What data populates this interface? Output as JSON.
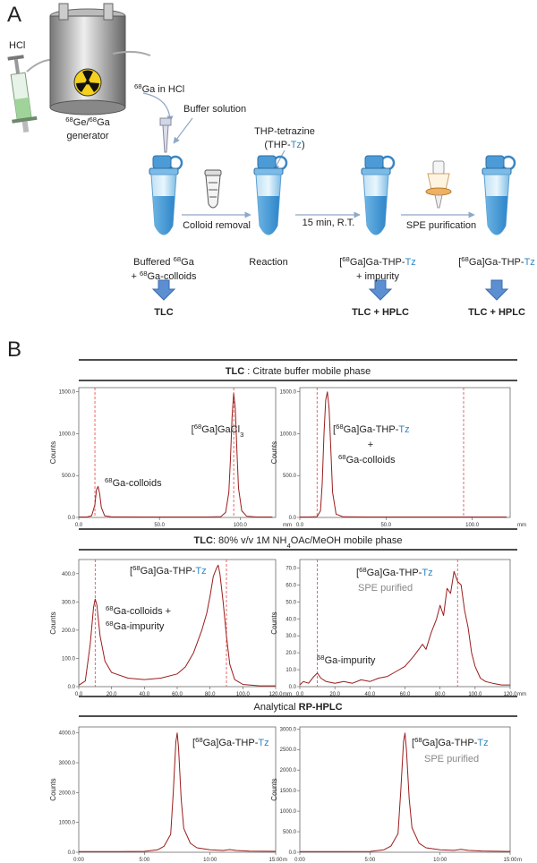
{
  "panel_a": {
    "label": "A",
    "hcl": "HCl",
    "generator": [
      "68",
      "Ge/",
      "68",
      "Ga"
    ],
    "generator_word": "generator",
    "ga_in_hcl": [
      "68",
      "Ga in HCl"
    ],
    "buffer": "Buffer solution",
    "thp_tetrazine": "THP-tetrazine",
    "thp_tz": [
      "(THP-",
      "Tz",
      ")"
    ],
    "colloid_removal": "Colloid removal",
    "time": "15 min, R.T.",
    "spe": "SPE purification",
    "step1": [
      "Buffered ",
      "68",
      "Ga"
    ],
    "step1b": [
      "+ ",
      "68",
      "Ga-colloids"
    ],
    "step2": "Reaction",
    "step3": [
      "[",
      "68",
      "Ga]Ga-THP-",
      "Tz"
    ],
    "step3b": "+ impurity",
    "step4": [
      "[",
      "68",
      "Ga]Ga-THP-",
      "Tz"
    ],
    "analysis1": "TLC",
    "analysis3": "TLC + HPLC",
    "analysis4": "TLC + HPLC"
  },
  "panel_b": {
    "label": "B",
    "section_titles": [
      [
        "TLC",
        " : Citrate buffer mobile phase"
      ],
      [
        "TLC",
        ": 80% v/v 1M NH",
        "4",
        "OAc/MeOH mobile phase"
      ],
      [
        "Analytical ",
        "RP-HPLC"
      ]
    ]
  },
  "chart_data": [
    {
      "type": "line",
      "ylabel": "Counts",
      "xunit": "mm",
      "color": "#9b1c1c",
      "ref_color": "#e0443e",
      "ref_lines": [
        10,
        96
      ],
      "xlim": [
        0,
        122
      ],
      "ylim": [
        0,
        1550
      ],
      "xticks": [
        {
          "value": 0,
          "label": "0.0"
        },
        {
          "value": 50,
          "label": "50.0"
        },
        {
          "value": 100,
          "label": "100.0"
        }
      ],
      "yticks": [
        {
          "value": 0,
          "label": "0.0"
        },
        {
          "value": 500,
          "label": "500.0"
        },
        {
          "value": 1000,
          "label": "1000.0"
        },
        {
          "value": 1500,
          "label": "1500.0"
        }
      ],
      "x": [
        0,
        5,
        8,
        10,
        11,
        12,
        13,
        14,
        16,
        20,
        40,
        60,
        80,
        88,
        91,
        93,
        94,
        95,
        96,
        97,
        98,
        99,
        101,
        104,
        110,
        120
      ],
      "values": [
        5,
        5,
        20,
        150,
        330,
        370,
        280,
        120,
        20,
        8,
        5,
        5,
        5,
        10,
        60,
        300,
        700,
        1200,
        1480,
        1300,
        800,
        350,
        80,
        15,
        5,
        5
      ],
      "annotations": [
        [
          "[",
          "68",
          "Ga]GaCl",
          "3"
        ],
        [
          "68",
          "Ga-colloids"
        ]
      ]
    },
    {
      "type": "line",
      "ylabel": "Counts",
      "xunit": "mm",
      "color": "#9b1c1c",
      "ref_color": "#e0443e",
      "ref_lines": [
        10,
        95
      ],
      "xlim": [
        0,
        122
      ],
      "ylim": [
        0,
        1550
      ],
      "xticks": [
        {
          "value": 0,
          "label": "0.0"
        },
        {
          "value": 50,
          "label": "50.0"
        },
        {
          "value": 100,
          "label": "100.0"
        }
      ],
      "yticks": [
        {
          "value": 0,
          "label": "0.0"
        },
        {
          "value": 500,
          "label": "500.0"
        },
        {
          "value": 1000,
          "label": "1000.0"
        },
        {
          "value": 1500,
          "label": "1500.0"
        }
      ],
      "x": [
        0,
        5,
        10,
        12,
        13,
        14,
        15,
        16,
        17,
        18,
        19,
        21,
        25,
        40,
        80,
        120
      ],
      "values": [
        5,
        5,
        10,
        80,
        400,
        1000,
        1400,
        1500,
        1300,
        800,
        300,
        40,
        8,
        5,
        5,
        5
      ],
      "annotations": [
        [
          "[",
          "68",
          "Ga]Ga-THP-",
          "Tz"
        ],
        "+",
        [
          "68",
          "Ga-colloids"
        ]
      ]
    },
    {
      "type": "line",
      "ylabel": "Counts",
      "xunit": "mm",
      "color": "#9b1c1c",
      "ref_color": "#e0443e",
      "ref_lines": [
        10,
        90
      ],
      "xlim": [
        0,
        120
      ],
      "ylim": [
        0,
        450
      ],
      "xticks": [
        {
          "value": 0,
          "label": "0.0"
        },
        {
          "value": 20,
          "label": "20.0"
        },
        {
          "value": 40,
          "label": "40.0"
        },
        {
          "value": 60,
          "label": "60.0"
        },
        {
          "value": 80,
          "label": "80.0"
        },
        {
          "value": 100,
          "label": "100.0"
        },
        {
          "value": 120,
          "label": "120.0"
        }
      ],
      "yticks": [
        {
          "value": 0,
          "label": "0.0"
        },
        {
          "value": 100,
          "label": "100.0"
        },
        {
          "value": 200,
          "label": "200.0"
        },
        {
          "value": 300,
          "label": "300.0"
        },
        {
          "value": 400,
          "label": "400.0"
        }
      ],
      "x": [
        0,
        4,
        7,
        9,
        10,
        11,
        13,
        16,
        20,
        30,
        40,
        50,
        60,
        65,
        70,
        75,
        78,
        80,
        82,
        84,
        85,
        86,
        88,
        90,
        92,
        95,
        100,
        110,
        120
      ],
      "values": [
        5,
        20,
        150,
        280,
        310,
        290,
        180,
        90,
        50,
        30,
        25,
        30,
        45,
        70,
        120,
        200,
        260,
        320,
        390,
        420,
        430,
        400,
        300,
        180,
        80,
        25,
        8,
        3,
        3
      ],
      "annotations": [
        [
          "[",
          "68",
          "Ga]Ga-THP-",
          "Tz"
        ],
        [
          "68",
          "Ga-colloids +"
        ],
        [
          "68",
          "Ga-impurity"
        ]
      ]
    },
    {
      "type": "line",
      "ylabel": "Counts",
      "xunit": "mm",
      "color": "#9b1c1c",
      "ref_color": "#e0443e",
      "ref_lines": [
        10,
        90
      ],
      "xlim": [
        0,
        120
      ],
      "ylim": [
        0,
        75
      ],
      "xticks": [
        {
          "value": 0,
          "label": "0.0"
        },
        {
          "value": 20,
          "label": "20.0"
        },
        {
          "value": 40,
          "label": "40.0"
        },
        {
          "value": 60,
          "label": "60.0"
        },
        {
          "value": 80,
          "label": "80.0"
        },
        {
          "value": 100,
          "label": "100.0"
        },
        {
          "value": 120,
          "label": "120.0"
        }
      ],
      "yticks": [
        {
          "value": 0,
          "label": "0.0"
        },
        {
          "value": 10,
          "label": "10.0"
        },
        {
          "value": 20,
          "label": "20.0"
        },
        {
          "value": 30,
          "label": "30.0"
        },
        {
          "value": 40,
          "label": "40.0"
        },
        {
          "value": 50,
          "label": "50.0"
        },
        {
          "value": 60,
          "label": "60.0"
        },
        {
          "value": 70,
          "label": "70.0"
        }
      ],
      "x": [
        0,
        2,
        5,
        8,
        10,
        12,
        15,
        20,
        25,
        30,
        35,
        40,
        45,
        50,
        55,
        60,
        65,
        70,
        72,
        75,
        78,
        80,
        82,
        84,
        86,
        88,
        90,
        92,
        94,
        96,
        98,
        100,
        103,
        106,
        110,
        115,
        120
      ],
      "values": [
        1,
        3,
        2,
        6,
        8,
        5,
        3,
        2,
        3,
        2,
        4,
        3,
        5,
        6,
        9,
        12,
        18,
        25,
        22,
        32,
        40,
        48,
        42,
        58,
        55,
        68,
        62,
        60,
        45,
        35,
        20,
        12,
        5,
        3,
        2,
        1,
        1
      ],
      "annotations": [
        [
          "[",
          "68",
          "Ga]Ga-THP-",
          "Tz"
        ],
        "SPE purified",
        [
          "68",
          "Ga-impurity"
        ]
      ]
    },
    {
      "type": "line",
      "ylabel": "Counts",
      "xunit": "m",
      "color": "#9b1c1c",
      "xlim": [
        0,
        15
      ],
      "ylim": [
        0,
        4200
      ],
      "xticks": [
        {
          "value": 0,
          "label": "0:00"
        },
        {
          "value": 5,
          "label": "5:00"
        },
        {
          "value": 10,
          "label": "10:00"
        },
        {
          "value": 15,
          "label": "15:00"
        }
      ],
      "yticks": [
        {
          "value": 0,
          "label": "0.0"
        },
        {
          "value": 1000,
          "label": "1000.0"
        },
        {
          "value": 2000,
          "label": "2000.0"
        },
        {
          "value": 3000,
          "label": "3000.0"
        },
        {
          "value": 4000,
          "label": "4000.0"
        }
      ],
      "x": [
        0,
        3,
        5,
        6,
        6.5,
        7,
        7.2,
        7.4,
        7.5,
        7.6,
        7.8,
        8,
        8.5,
        9,
        10,
        11,
        11.5,
        12,
        13,
        15
      ],
      "values": [
        20,
        20,
        30,
        80,
        200,
        600,
        2000,
        3700,
        4000,
        3500,
        1800,
        800,
        300,
        150,
        80,
        60,
        90,
        60,
        40,
        30
      ],
      "annotations": [
        [
          "[",
          "68",
          "Ga]Ga-THP-",
          "Tz"
        ]
      ]
    },
    {
      "type": "line",
      "ylabel": "Counts",
      "xunit": "m",
      "color": "#9b1c1c",
      "xlim": [
        0,
        15
      ],
      "ylim": [
        0,
        3050
      ],
      "xticks": [
        {
          "value": 0,
          "label": "0:00"
        },
        {
          "value": 5,
          "label": "5:00"
        },
        {
          "value": 10,
          "label": "10:00"
        },
        {
          "value": 15,
          "label": "15:00"
        }
      ],
      "yticks": [
        {
          "value": 0,
          "label": "0.0"
        },
        {
          "value": 500,
          "label": "500.0"
        },
        {
          "value": 1000,
          "label": "1000.0"
        },
        {
          "value": 1500,
          "label": "1500.0"
        },
        {
          "value": 2000,
          "label": "2000.0"
        },
        {
          "value": 2500,
          "label": "2500.0"
        },
        {
          "value": 3000,
          "label": "3000.0"
        }
      ],
      "x": [
        0,
        3,
        5,
        6,
        6.5,
        7,
        7.2,
        7.4,
        7.5,
        7.6,
        7.8,
        8,
        8.5,
        9,
        10,
        11,
        11.5,
        12,
        13,
        15
      ],
      "values": [
        15,
        15,
        20,
        60,
        150,
        450,
        1500,
        2700,
        2900,
        2500,
        1300,
        600,
        220,
        110,
        60,
        45,
        70,
        45,
        30,
        20
      ],
      "annotations": [
        [
          "[",
          "68",
          "Ga]Ga-THP-",
          "Tz"
        ],
        "SPE purified"
      ]
    }
  ]
}
